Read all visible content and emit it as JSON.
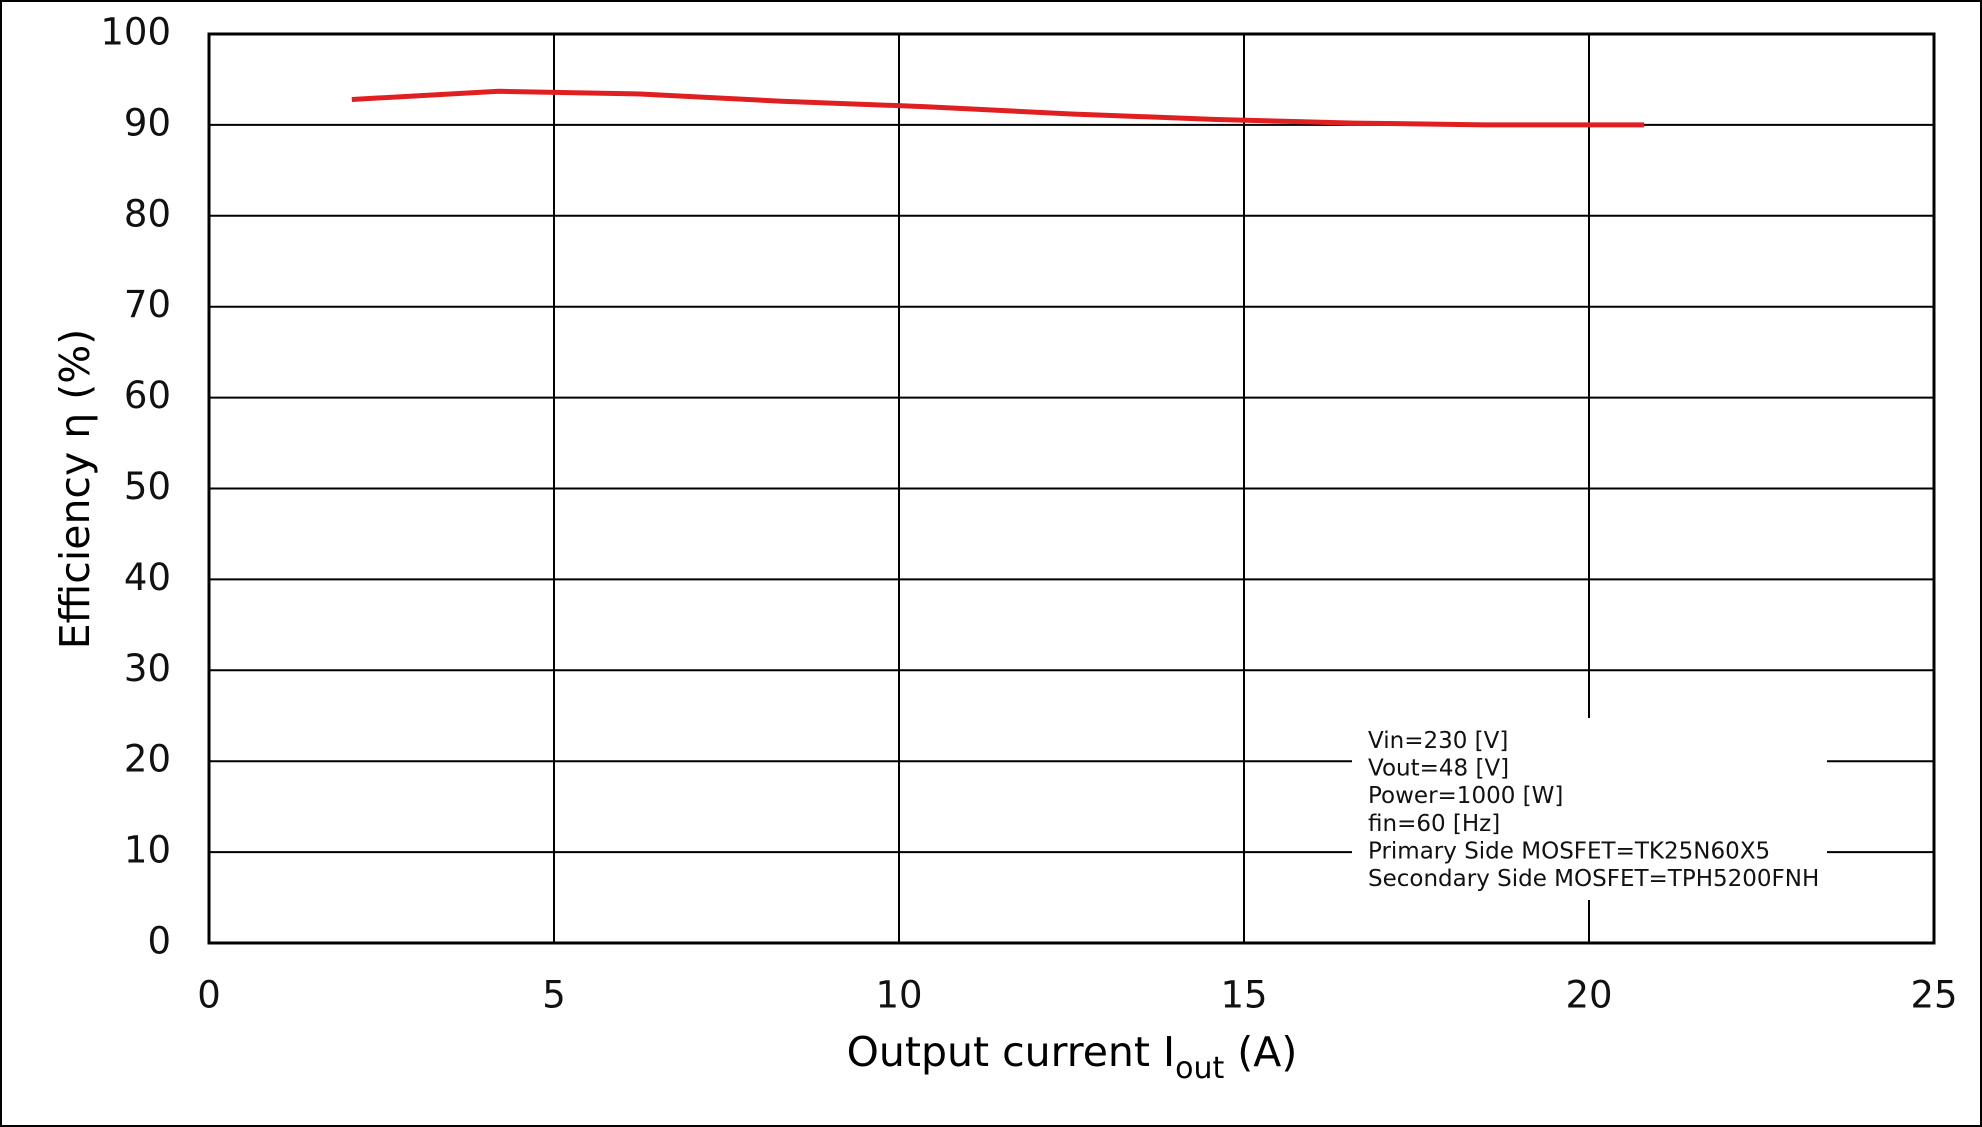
{
  "chart_data": {
    "type": "line",
    "x_label": {
      "text": "Output current  I",
      "subscript": "out",
      "suffix": " (A)"
    },
    "y_label": "Efficiency  η (%)",
    "x": [
      2.07,
      4.2,
      6.25,
      8.3,
      10.4,
      12.5,
      14.6,
      16.6,
      18.5,
      20.8
    ],
    "series": [
      {
        "color": "#e02020",
        "values": [
          92.8,
          93.7,
          93.4,
          92.6,
          92.0,
          91.2,
          90.6,
          90.2,
          90.0,
          90.0
        ]
      }
    ],
    "xlim": [
      0,
      25
    ],
    "xticks": [
      0,
      5,
      10,
      15,
      20,
      25
    ],
    "ylim": [
      0,
      100
    ],
    "yticks": [
      0,
      10,
      20,
      30,
      40,
      50,
      60,
      70,
      80,
      90,
      100
    ],
    "grid": true,
    "annotations": [
      "Vin=230 [V]",
      "Vout=48 [V]",
      "Power=1000 [W]",
      "fin=60 [Hz]",
      "Primary Side MOSFET=TK25N60X5",
      "Secondary Side MOSFET=TPH5200FNH"
    ]
  }
}
